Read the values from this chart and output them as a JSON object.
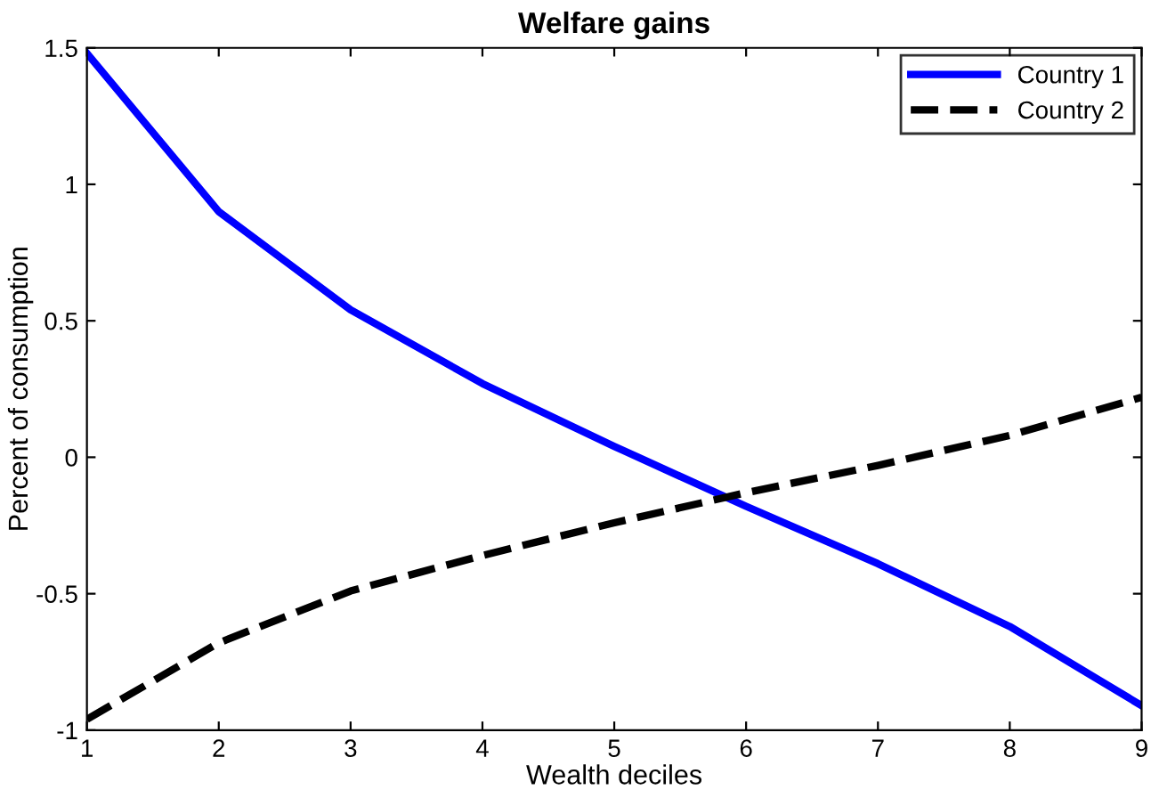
{
  "chart_data": {
    "type": "line",
    "title": "Welfare gains",
    "xlabel": "Wealth deciles",
    "ylabel": "Percent of consumption",
    "x": [
      1,
      2,
      3,
      4,
      5,
      6,
      7,
      8,
      9
    ],
    "series": [
      {
        "name": "Country 1",
        "color": "#0000ff",
        "line_style": "solid",
        "values": [
          1.48,
          0.9,
          0.54,
          0.27,
          0.04,
          -0.18,
          -0.39,
          -0.62,
          -0.91
        ]
      },
      {
        "name": "Country 2",
        "color": "#000000",
        "line_style": "dashed",
        "values": [
          -0.96,
          -0.68,
          -0.49,
          -0.36,
          -0.24,
          -0.13,
          -0.03,
          0.08,
          0.22
        ]
      }
    ],
    "xlim": [
      1,
      9
    ],
    "ylim": [
      -1,
      1.5
    ],
    "xticks": [
      1,
      2,
      3,
      4,
      5,
      6,
      7,
      8,
      9
    ],
    "yticks": [
      -1,
      -0.5,
      0,
      0.5,
      1,
      1.5
    ],
    "grid": false,
    "legend": "top right",
    "marker": "none"
  }
}
